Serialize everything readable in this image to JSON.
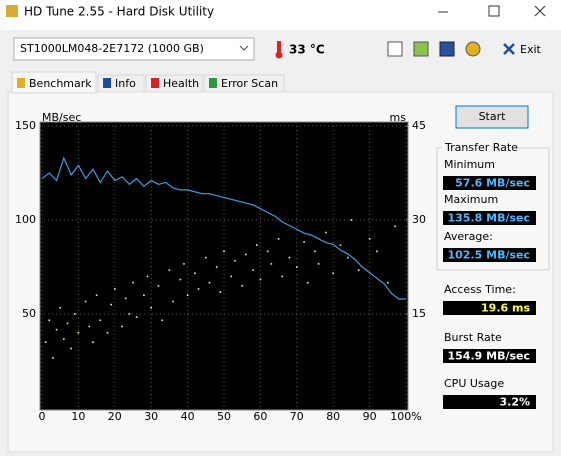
{
  "window": {
    "title": "HD Tune 2.55 - Hard Disk Utility"
  },
  "toolbar": {
    "drive": "ST1000LM048-2E7172 (1000 GB)",
    "temperature": "33 °C",
    "exit": "Exit"
  },
  "tabs": [
    "Benchmark",
    "Info",
    "Health",
    "Error Scan"
  ],
  "start": "Start",
  "results": {
    "transfer_rate": "Transfer Rate",
    "minimum": {
      "label": "Minimum",
      "value": "57.6 MB/sec"
    },
    "maximum": {
      "label": "Maximum",
      "value": "135.8 MB/sec"
    },
    "average": {
      "label": "Average:",
      "value": "102.5 MB/sec"
    },
    "access_time": {
      "label": "Access Time:",
      "value": "19.6 ms"
    },
    "burst_rate": {
      "label": "Burst Rate",
      "value": "154.9 MB/sec"
    },
    "cpu_usage": {
      "label": "CPU Usage",
      "value": "3.2%"
    }
  },
  "chart_data": {
    "type": "line",
    "y_label": "MB/sec",
    "y2_label": "ms",
    "xlim": [
      0,
      100
    ],
    "xticks": [
      0,
      10,
      20,
      30,
      40,
      50,
      60,
      70,
      80,
      90,
      {
        "value": 100,
        "label": "100%"
      }
    ],
    "ylim": [
      0,
      150
    ],
    "yticks": [
      50,
      100,
      150
    ],
    "y2lim": [
      0,
      45
    ],
    "y2ticks": [
      15,
      30,
      45
    ],
    "grid": true,
    "series": [
      {
        "type": "line",
        "color": "#3c9ee0",
        "x": [
          0,
          2,
          4,
          6,
          8,
          10,
          12,
          14,
          16,
          18,
          20,
          22,
          24,
          26,
          28,
          30,
          32,
          34,
          36,
          38,
          40,
          42,
          44,
          46,
          48,
          50,
          52,
          54,
          56,
          58,
          60,
          62,
          64,
          66,
          68,
          70,
          72,
          74,
          76,
          78,
          80,
          82,
          84,
          86,
          88,
          90,
          92,
          94,
          96,
          98,
          100
        ],
        "values": [
          122,
          125,
          121,
          133,
          124,
          129,
          122,
          127,
          120,
          126,
          121,
          123,
          119,
          122,
          118,
          121,
          119,
          120,
          117,
          116,
          116,
          115,
          114,
          114,
          113,
          112,
          111,
          110,
          109,
          108,
          106,
          104,
          102,
          99,
          97,
          95,
          93,
          92,
          90,
          88,
          87,
          84,
          82,
          79,
          75,
          72,
          69,
          66,
          61,
          58,
          58
        ]
      },
      {
        "type": "scatter",
        "axis": "y2",
        "color": "#f5f0a8",
        "x": [
          1,
          2,
          3,
          4,
          5,
          6,
          7,
          8,
          9,
          10,
          12,
          13,
          14,
          15,
          16,
          18,
          19,
          20,
          22,
          23,
          24,
          25,
          26,
          28,
          29,
          30,
          32,
          33,
          35,
          36,
          38,
          39,
          40,
          42,
          43,
          45,
          46,
          48,
          49,
          50,
          52,
          53,
          55,
          56,
          58,
          59,
          60,
          62,
          63,
          65,
          66,
          68,
          70,
          72,
          73,
          75,
          76,
          78,
          80,
          82,
          84,
          85,
          87,
          90,
          92,
          95,
          97
        ],
        "values": [
          10.5,
          14,
          8,
          12.5,
          16,
          11,
          13.5,
          9.5,
          15,
          12,
          17,
          13,
          10.5,
          18,
          14,
          12,
          16.5,
          19,
          13,
          17.5,
          15,
          20,
          14.5,
          18,
          21,
          16,
          19.5,
          14,
          22,
          17,
          20.5,
          23,
          18,
          21.5,
          19,
          24,
          20,
          22.5,
          18.5,
          25,
          21,
          23.5,
          19.5,
          24.5,
          22,
          26,
          20.5,
          25,
          23,
          27,
          21,
          24,
          22.5,
          26.5,
          20,
          25,
          23,
          28,
          21.5,
          26,
          24,
          30,
          22,
          27,
          25,
          20,
          29
        ]
      }
    ]
  }
}
